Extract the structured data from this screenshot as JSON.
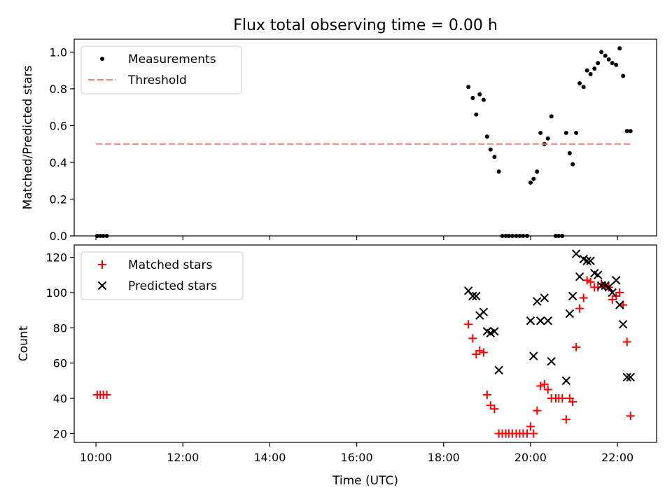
{
  "chart_data": [
    {
      "type": "scatter",
      "title": "Flux total observing time = 0.00 h",
      "xlabel": "",
      "ylabel": "Matched/Predicted stars",
      "xlim": [
        9.5,
        22.9
      ],
      "ylim": [
        0,
        1.07
      ],
      "yticks": [
        0.0,
        0.2,
        0.4,
        0.6,
        0.8,
        1.0
      ],
      "ytick_labels": [
        "0.0",
        "0.2",
        "0.4",
        "0.6",
        "0.8",
        "1.0"
      ],
      "xticks": [
        10,
        12,
        14,
        16,
        18,
        20,
        22
      ],
      "legend_position": "top-left",
      "series": [
        {
          "name": "Measurements",
          "kind": "scatter",
          "color": "#000000",
          "x": [
            10.03,
            10.1,
            10.17,
            10.25,
            18.57,
            18.67,
            18.75,
            18.83,
            18.92,
            19.0,
            19.08,
            19.17,
            19.27,
            19.35,
            19.43,
            19.5,
            19.58,
            19.67,
            19.75,
            19.83,
            19.92,
            20.0,
            20.07,
            20.15,
            20.23,
            20.32,
            20.4,
            20.48,
            20.58,
            20.65,
            20.73,
            20.82,
            20.9,
            20.97,
            21.05,
            21.13,
            21.22,
            21.3,
            21.38,
            21.47,
            21.55,
            21.63,
            21.72,
            21.8,
            21.88,
            21.97,
            22.05,
            22.13,
            22.22,
            22.3
          ],
          "y": [
            0.0,
            0.0,
            0.0,
            0.0,
            0.81,
            0.75,
            0.66,
            0.77,
            0.74,
            0.54,
            0.47,
            0.43,
            0.35,
            0.0,
            0.0,
            0.0,
            0.0,
            0.0,
            0.0,
            0.0,
            0.0,
            0.29,
            0.31,
            0.35,
            0.56,
            0.5,
            0.53,
            0.65,
            0.0,
            0.0,
            0.0,
            0.56,
            0.45,
            0.39,
            0.56,
            0.83,
            0.81,
            0.9,
            0.88,
            0.91,
            0.94,
            1.0,
            0.98,
            0.96,
            0.94,
            0.93,
            1.02,
            0.87,
            0.57,
            0.57
          ]
        },
        {
          "name": "Threshold",
          "kind": "line",
          "color": "#f08080",
          "x": [
            10.0,
            22.3
          ],
          "y": [
            0.5,
            0.5
          ]
        }
      ]
    },
    {
      "type": "scatter",
      "title": "",
      "xlabel": "Time (UTC)",
      "ylabel": "Count",
      "xlim": [
        9.5,
        22.9
      ],
      "ylim": [
        15,
        127
      ],
      "yticks": [
        20,
        40,
        60,
        80,
        100,
        120
      ],
      "ytick_labels": [
        "20",
        "40",
        "60",
        "80",
        "100",
        "120"
      ],
      "xticks": [
        10,
        12,
        14,
        16,
        18,
        20,
        22
      ],
      "xtick_labels": [
        "10:00",
        "12:00",
        "14:00",
        "16:00",
        "18:00",
        "20:00",
        "22:00"
      ],
      "legend_position": "top-left",
      "series": [
        {
          "name": "Matched stars",
          "kind": "plus",
          "color": "#ff0000",
          "x": [
            10.03,
            10.1,
            10.17,
            10.25,
            18.57,
            18.67,
            18.75,
            18.83,
            18.92,
            19.0,
            19.08,
            19.17,
            19.27,
            19.35,
            19.43,
            19.5,
            19.58,
            19.67,
            19.75,
            19.83,
            19.92,
            20.0,
            20.07,
            20.15,
            20.23,
            20.32,
            20.4,
            20.48,
            20.58,
            20.65,
            20.73,
            20.82,
            20.9,
            20.97,
            21.05,
            21.13,
            21.22,
            21.3,
            21.38,
            21.47,
            21.55,
            21.63,
            21.72,
            21.8,
            21.88,
            21.97,
            22.05,
            22.13,
            22.22,
            22.3
          ],
          "y": [
            42,
            42,
            42,
            42,
            82,
            74,
            65,
            67,
            66,
            42,
            36,
            34,
            20,
            20,
            20,
            20,
            20,
            20,
            20,
            20,
            20,
            24,
            20,
            33,
            47,
            48,
            45,
            40,
            40,
            40,
            40,
            28,
            40,
            38,
            69,
            91,
            97,
            107,
            106,
            103,
            103,
            105,
            104,
            103,
            96,
            98,
            100,
            93,
            72,
            30
          ]
        },
        {
          "name": "Predicted stars",
          "kind": "x",
          "color": "#000000",
          "x": [
            18.57,
            18.67,
            18.75,
            18.83,
            18.92,
            19.0,
            19.08,
            19.17,
            19.27,
            20.0,
            20.07,
            20.15,
            20.23,
            20.32,
            20.4,
            20.48,
            20.82,
            20.9,
            20.97,
            21.05,
            21.13,
            21.22,
            21.3,
            21.38,
            21.47,
            21.55,
            21.63,
            21.72,
            21.8,
            21.88,
            21.97,
            22.05,
            22.13,
            22.22,
            22.3
          ],
          "y": [
            101,
            98,
            98,
            87,
            89,
            78,
            77,
            78,
            56,
            84,
            64,
            95,
            84,
            97,
            84,
            61,
            50,
            88,
            98,
            122,
            109,
            119,
            118,
            118,
            111,
            110,
            104,
            104,
            103,
            100,
            107,
            93,
            82,
            52,
            52
          ]
        }
      ]
    }
  ]
}
